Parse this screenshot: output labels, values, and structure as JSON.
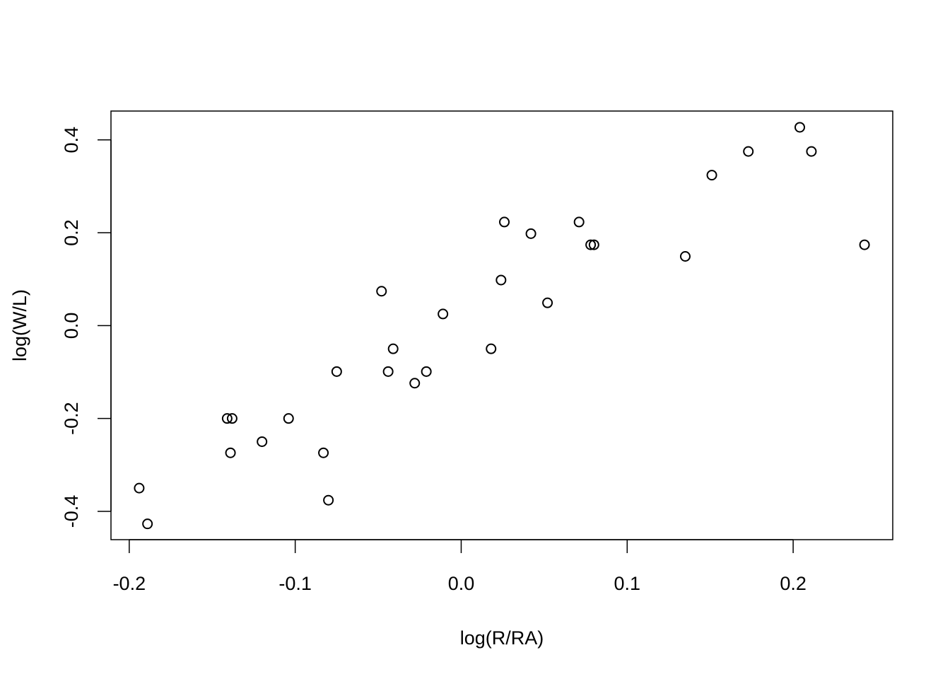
{
  "chart_data": {
    "type": "scatter",
    "title": "",
    "xlabel": "log(R/RA)",
    "ylabel": "log(W/L)",
    "xlim": [
      -0.211,
      0.26
    ],
    "ylim": [
      -0.461,
      0.462
    ],
    "xticks": [
      -0.2,
      -0.1,
      0.0,
      0.1,
      0.2
    ],
    "xtick_labels": [
      "-0.2",
      "-0.1",
      "0.0",
      "0.1",
      "0.2"
    ],
    "yticks": [
      -0.4,
      -0.2,
      0.0,
      0.2,
      0.4
    ],
    "ytick_labels": [
      "-0.4",
      "-0.2",
      "0.0",
      "0.2",
      "0.4"
    ],
    "grid": false,
    "legend": "none",
    "marker": "open-circle",
    "color": "#000000",
    "points": [
      {
        "x": -0.194,
        "y": -0.35
      },
      {
        "x": -0.189,
        "y": -0.427
      },
      {
        "x": -0.141,
        "y": -0.2
      },
      {
        "x": -0.138,
        "y": -0.2
      },
      {
        "x": -0.139,
        "y": -0.274
      },
      {
        "x": -0.12,
        "y": -0.25
      },
      {
        "x": -0.104,
        "y": -0.2
      },
      {
        "x": -0.083,
        "y": -0.274
      },
      {
        "x": -0.08,
        "y": -0.376
      },
      {
        "x": -0.075,
        "y": -0.099
      },
      {
        "x": -0.048,
        "y": 0.074
      },
      {
        "x": -0.044,
        "y": -0.099
      },
      {
        "x": -0.041,
        "y": -0.05
      },
      {
        "x": -0.028,
        "y": -0.124
      },
      {
        "x": -0.021,
        "y": -0.099
      },
      {
        "x": -0.011,
        "y": 0.025
      },
      {
        "x": 0.018,
        "y": -0.05
      },
      {
        "x": 0.024,
        "y": 0.098
      },
      {
        "x": 0.026,
        "y": 0.223
      },
      {
        "x": 0.042,
        "y": 0.198
      },
      {
        "x": 0.052,
        "y": 0.049
      },
      {
        "x": 0.071,
        "y": 0.223
      },
      {
        "x": 0.078,
        "y": 0.174
      },
      {
        "x": 0.08,
        "y": 0.174
      },
      {
        "x": 0.135,
        "y": 0.149
      },
      {
        "x": 0.151,
        "y": 0.324
      },
      {
        "x": 0.173,
        "y": 0.375
      },
      {
        "x": 0.204,
        "y": 0.427
      },
      {
        "x": 0.211,
        "y": 0.375
      },
      {
        "x": 0.243,
        "y": 0.174
      }
    ]
  }
}
